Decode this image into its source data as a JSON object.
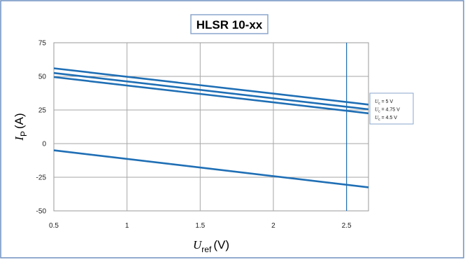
{
  "chart_data": {
    "type": "line",
    "title": "HLSR 10-xx",
    "xlabel": {
      "symbol": "U",
      "subscript": "ref",
      "unit": "(V)"
    },
    "ylabel": {
      "symbol": "I",
      "subscript": "P",
      "unit": "(A)"
    },
    "xlim": [
      0.5,
      2.65
    ],
    "ylim": [
      -50,
      75
    ],
    "x_ticks": [
      0.5,
      1,
      1.5,
      2,
      2.5
    ],
    "x_tick_labels": [
      "0.5",
      "1",
      "1.5",
      "2",
      "2.5"
    ],
    "y_ticks": [
      -50,
      -25,
      0,
      25,
      50,
      75
    ],
    "y_tick_labels": [
      "-50",
      "-25",
      "0",
      "25",
      "50",
      "75"
    ],
    "grid": true,
    "reference_line_x": 2.5,
    "legend": {
      "placement": "right",
      "entries": [
        {
          "symbol": "U",
          "subscript": "c",
          "text": " = 5 V"
        },
        {
          "symbol": "U",
          "subscript": "c",
          "text": " = 4.75 V"
        },
        {
          "symbol": "U",
          "subscript": "c",
          "text": " = 4.5 V"
        }
      ]
    },
    "series": [
      {
        "color": "#1f6fb5",
        "x": [
          0.5,
          2.65
        ],
        "y": [
          56,
          29
        ]
      },
      {
        "color": "#1f6fb5",
        "x": [
          0.5,
          2.65
        ],
        "y": [
          52.5,
          25.5
        ]
      },
      {
        "color": "#1f6fb5",
        "x": [
          0.5,
          2.65
        ],
        "y": [
          49.5,
          22.5
        ]
      },
      {
        "color": "#1f6fb5",
        "x": [
          0.5,
          2.65
        ],
        "y": [
          -5,
          -32.5
        ]
      }
    ]
  }
}
